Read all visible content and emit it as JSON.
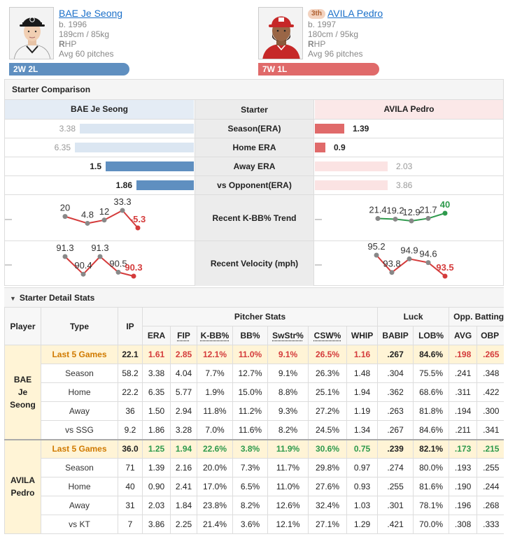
{
  "header": {
    "corner_link": "…",
    "home": {
      "name": "BAE Je Seong",
      "born": "b. 1996",
      "size": "189cm / 85kg",
      "hand_letter": "R",
      "hand_rest": "HP",
      "avg_pitches": "Avg 60 pitches",
      "record": "2W 2L"
    },
    "away": {
      "rank": "3th",
      "name": "AVILA Pedro",
      "born": "b. 1997",
      "size": "180cm / 95kg",
      "hand_letter": "R",
      "hand_rest": "HP",
      "avg_pitches": "Avg 96 pitches",
      "record": "7W 1L"
    }
  },
  "comparison": {
    "title": "Starter Comparison",
    "left_header": "BAE Je Seong",
    "mid_header": "Starter",
    "right_header": "AVILA Pedro",
    "rows": [
      {
        "label": "Season(ERA)",
        "left": "3.38",
        "right": "1.39",
        "left_ratio": 0.96,
        "right_ratio": 0.4,
        "winner": "right"
      },
      {
        "label": "Home ERA",
        "left": "6.35",
        "right": "0.9",
        "left_ratio": 1.0,
        "right_ratio": 0.14,
        "winner": "right"
      },
      {
        "label": "Away ERA",
        "left": "1.5",
        "right": "2.03",
        "left_ratio": 0.74,
        "right_ratio": 1.0,
        "winner": "left"
      },
      {
        "label": "vs Opponent(ERA)",
        "left": "1.86",
        "right": "3.86",
        "left_ratio": 0.48,
        "right_ratio": 1.0,
        "winner": "left"
      }
    ],
    "kbb_label": "Recent K-BB% Trend",
    "kbb_left": [
      "20",
      "4.8",
      "12",
      "33.3",
      "-5.3"
    ],
    "kbb_left_values": [
      20,
      4.8,
      12,
      33.3,
      -5.3
    ],
    "kbb_right": [
      "21.4",
      "19.2",
      "12.9",
      "21.7",
      "40"
    ],
    "kbb_right_values": [
      21.4,
      19.2,
      12.9,
      21.7,
      40
    ],
    "velo_label": "Recent Velocity (mph)",
    "velo_left": [
      "91.3",
      "90.4",
      "91.3",
      "90.5",
      "90.3"
    ],
    "velo_left_values": [
      91.3,
      90.4,
      91.3,
      90.5,
      90.3
    ],
    "velo_right": [
      "95.2",
      "93.8",
      "94.9",
      "94.6",
      "93.5"
    ],
    "velo_right_values": [
      95.2,
      93.8,
      94.9,
      94.6,
      93.5
    ],
    "colors": {
      "home": "#5f8fc0",
      "away": "#e06a6a",
      "up": "#2e9a4c",
      "down": "#d43b3b"
    }
  },
  "detail": {
    "title": "Starter Detail Stats",
    "col_player": "Player",
    "col_type": "Type",
    "col_ip": "IP",
    "group_pitcher": "Pitcher Stats",
    "group_luck": "Luck",
    "group_opp": "Opp. Batting",
    "cols": [
      "ERA",
      "FIP",
      "K-BB%",
      "BB%",
      "SwStr%",
      "CSW%",
      "WHIP",
      "BABIP",
      "LOB%",
      "AVG",
      "OBP"
    ],
    "home_player": [
      "BAE",
      "Je",
      "Seong"
    ],
    "away_player": [
      "AVILA",
      "Pedro"
    ],
    "home_rows": [
      {
        "type": "Last 5 Games",
        "ip": "22.1",
        "vals": [
          "1.61",
          "2.85",
          "12.1%",
          "11.0%",
          "9.1%",
          "26.5%",
          "1.16",
          ".267",
          "84.6%",
          ".198",
          ".265"
        ]
      },
      {
        "type": "Season",
        "ip": "58.2",
        "vals": [
          "3.38",
          "4.04",
          "7.7%",
          "12.7%",
          "9.1%",
          "26.3%",
          "1.48",
          ".304",
          "75.5%",
          ".241",
          ".348"
        ]
      },
      {
        "type": "Home",
        "ip": "22.2",
        "vals": [
          "6.35",
          "5.77",
          "1.9%",
          "15.0%",
          "8.8%",
          "25.1%",
          "1.94",
          ".362",
          "68.6%",
          ".311",
          ".422"
        ]
      },
      {
        "type": "Away",
        "ip": "36",
        "vals": [
          "1.50",
          "2.94",
          "11.8%",
          "11.2%",
          "9.3%",
          "27.2%",
          "1.19",
          ".263",
          "81.8%",
          ".194",
          ".300"
        ]
      },
      {
        "type": "vs SSG",
        "ip": "9.2",
        "vals": [
          "1.86",
          "3.28",
          "7.0%",
          "11.6%",
          "8.2%",
          "24.5%",
          "1.34",
          ".267",
          "84.6%",
          ".211",
          ".341"
        ]
      }
    ],
    "away_rows": [
      {
        "type": "Last 5 Games",
        "ip": "36.0",
        "vals": [
          "1.25",
          "1.94",
          "22.6%",
          "3.8%",
          "11.9%",
          "30.6%",
          "0.75",
          ".239",
          "82.1%",
          ".173",
          ".215"
        ]
      },
      {
        "type": "Season",
        "ip": "71",
        "vals": [
          "1.39",
          "2.16",
          "20.0%",
          "7.3%",
          "11.7%",
          "29.8%",
          "0.97",
          ".274",
          "80.0%",
          ".193",
          ".255"
        ]
      },
      {
        "type": "Home",
        "ip": "40",
        "vals": [
          "0.90",
          "2.41",
          "17.0%",
          "6.5%",
          "11.0%",
          "27.6%",
          "0.93",
          ".255",
          "81.6%",
          ".190",
          ".244"
        ]
      },
      {
        "type": "Away",
        "ip": "31",
        "vals": [
          "2.03",
          "1.84",
          "23.8%",
          "8.2%",
          "12.6%",
          "32.4%",
          "1.03",
          ".301",
          "78.1%",
          ".196",
          ".268"
        ]
      },
      {
        "type": "vs KT",
        "ip": "7",
        "vals": [
          "3.86",
          "2.25",
          "21.4%",
          "3.6%",
          "12.1%",
          "27.1%",
          "1.29",
          ".421",
          "70.0%",
          ".308",
          ".333"
        ]
      }
    ]
  }
}
